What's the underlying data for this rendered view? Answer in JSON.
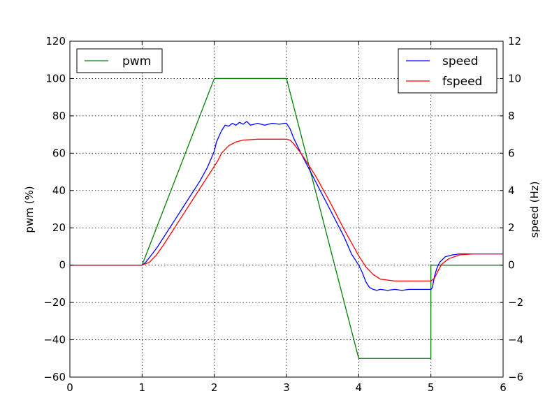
{
  "chart_data": {
    "type": "line",
    "xlim": [
      0,
      6
    ],
    "x_ticks": [
      "0",
      "1",
      "2",
      "3",
      "4",
      "5",
      "6"
    ],
    "left_axis": {
      "ylabel": "pwm (%)",
      "ylim": [
        -60,
        120
      ],
      "ticks": [
        "−60",
        "−40",
        "−20",
        "0",
        "20",
        "40",
        "60",
        "80",
        "100",
        "120"
      ]
    },
    "right_axis": {
      "ylabel": "speed (Hz)",
      "ylim": [
        -6,
        12
      ],
      "ticks": [
        "−6",
        "−4",
        "−2",
        "0",
        "2",
        "4",
        "6",
        "8",
        "10",
        "12"
      ]
    },
    "grid": true,
    "legends": [
      {
        "placement": "upper-left",
        "entries": [
          "pwm"
        ]
      },
      {
        "placement": "upper-right",
        "entries": [
          "speed",
          "fspeed"
        ]
      }
    ],
    "series": [
      {
        "name": "pwm",
        "axis": "left",
        "color": "#008000",
        "points": [
          [
            0,
            0
          ],
          [
            1.0,
            0
          ],
          [
            2.0,
            100
          ],
          [
            3.0,
            100
          ],
          [
            4.0,
            -50
          ],
          [
            5.0,
            -50
          ],
          [
            5.0,
            0
          ],
          [
            6.0,
            0
          ]
        ]
      },
      {
        "name": "speed",
        "axis": "right",
        "color": "#0000ff",
        "points": [
          [
            0,
            0
          ],
          [
            1.0,
            0
          ],
          [
            1.05,
            0.15
          ],
          [
            1.1,
            0.4
          ],
          [
            1.2,
            0.9
          ],
          [
            1.4,
            2.1
          ],
          [
            1.6,
            3.3
          ],
          [
            1.8,
            4.5
          ],
          [
            1.9,
            5.2
          ],
          [
            2.0,
            6.1
          ],
          [
            2.03,
            6.6
          ],
          [
            2.1,
            7.2
          ],
          [
            2.15,
            7.5
          ],
          [
            2.2,
            7.45
          ],
          [
            2.25,
            7.6
          ],
          [
            2.3,
            7.5
          ],
          [
            2.35,
            7.65
          ],
          [
            2.4,
            7.55
          ],
          [
            2.45,
            7.7
          ],
          [
            2.5,
            7.5
          ],
          [
            2.6,
            7.6
          ],
          [
            2.7,
            7.5
          ],
          [
            2.8,
            7.6
          ],
          [
            2.9,
            7.55
          ],
          [
            2.97,
            7.6
          ],
          [
            3.0,
            7.6
          ],
          [
            3.05,
            7.3
          ],
          [
            3.1,
            6.8
          ],
          [
            3.2,
            6.0
          ],
          [
            3.4,
            4.5
          ],
          [
            3.6,
            3.0
          ],
          [
            3.8,
            1.5
          ],
          [
            3.9,
            0.6
          ],
          [
            4.0,
            0.0
          ],
          [
            4.05,
            -0.4
          ],
          [
            4.1,
            -0.9
          ],
          [
            4.15,
            -1.2
          ],
          [
            4.2,
            -1.3
          ],
          [
            4.25,
            -1.35
          ],
          [
            4.3,
            -1.3
          ],
          [
            4.4,
            -1.35
          ],
          [
            4.5,
            -1.3
          ],
          [
            4.6,
            -1.35
          ],
          [
            4.7,
            -1.3
          ],
          [
            4.8,
            -1.3
          ],
          [
            4.9,
            -1.3
          ],
          [
            4.97,
            -1.3
          ],
          [
            5.0,
            -1.3
          ],
          [
            5.02,
            -1.2
          ],
          [
            5.05,
            -0.6
          ],
          [
            5.08,
            -0.2
          ],
          [
            5.12,
            0.15
          ],
          [
            5.2,
            0.45
          ],
          [
            5.3,
            0.55
          ],
          [
            5.4,
            0.6
          ],
          [
            6.0,
            0.6
          ]
        ]
      },
      {
        "name": "fspeed",
        "axis": "right",
        "color": "#ff0000",
        "points": [
          [
            0,
            0
          ],
          [
            1.0,
            0
          ],
          [
            1.1,
            0.15
          ],
          [
            1.2,
            0.55
          ],
          [
            1.3,
            1.1
          ],
          [
            1.5,
            2.3
          ],
          [
            1.7,
            3.5
          ],
          [
            1.9,
            4.7
          ],
          [
            2.05,
            5.6
          ],
          [
            2.1,
            6.0
          ],
          [
            2.2,
            6.4
          ],
          [
            2.3,
            6.6
          ],
          [
            2.4,
            6.7
          ],
          [
            2.6,
            6.75
          ],
          [
            2.8,
            6.75
          ],
          [
            3.0,
            6.75
          ],
          [
            3.05,
            6.7
          ],
          [
            3.1,
            6.5
          ],
          [
            3.2,
            6.0
          ],
          [
            3.4,
            4.8
          ],
          [
            3.6,
            3.4
          ],
          [
            3.8,
            1.9
          ],
          [
            4.0,
            0.5
          ],
          [
            4.1,
            -0.1
          ],
          [
            4.2,
            -0.5
          ],
          [
            4.3,
            -0.75
          ],
          [
            4.5,
            -0.85
          ],
          [
            4.8,
            -0.85
          ],
          [
            5.0,
            -0.85
          ],
          [
            5.05,
            -0.7
          ],
          [
            5.1,
            -0.3
          ],
          [
            5.15,
            0.05
          ],
          [
            5.25,
            0.35
          ],
          [
            5.4,
            0.55
          ],
          [
            5.6,
            0.6
          ],
          [
            6.0,
            0.6
          ]
        ]
      }
    ]
  }
}
